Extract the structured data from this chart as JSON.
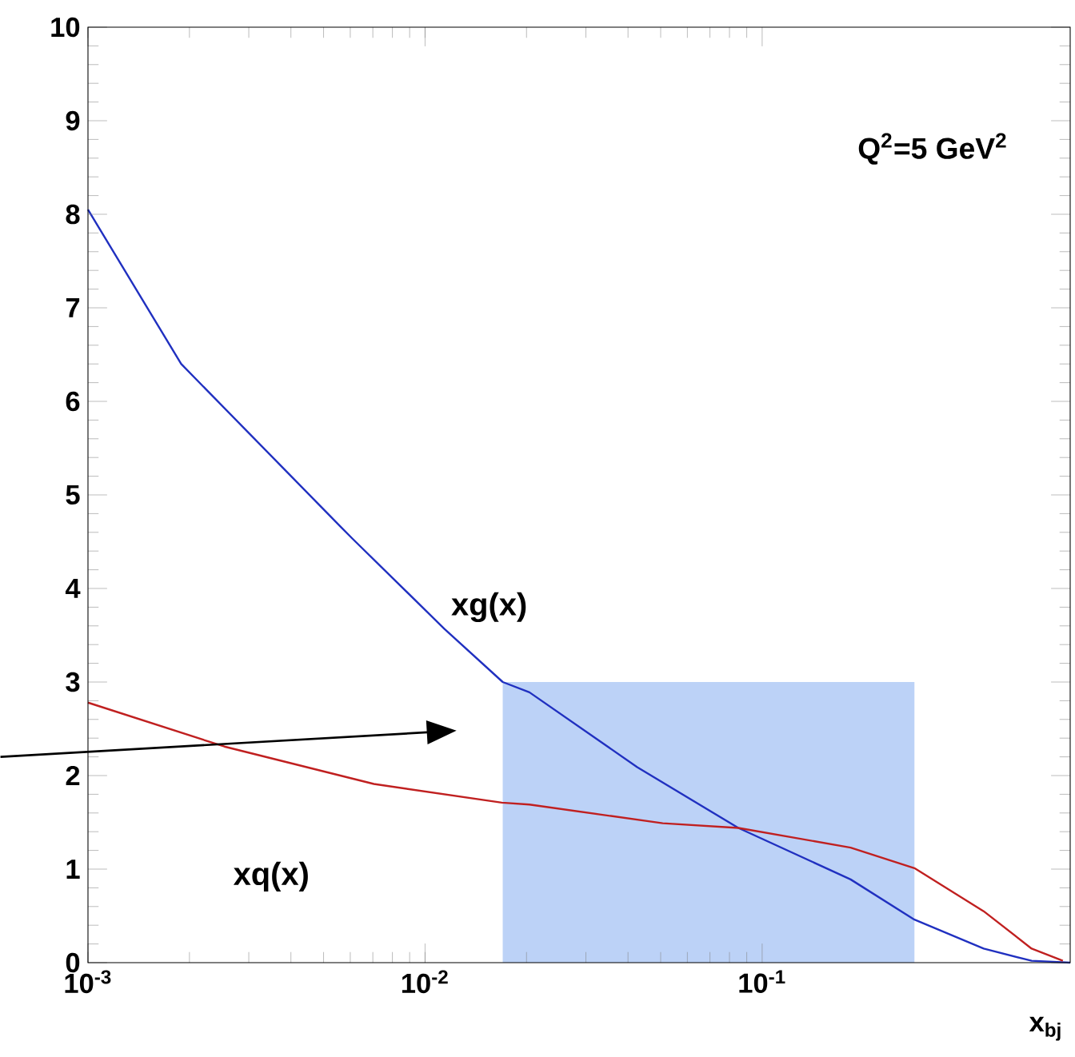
{
  "chart_data": {
    "type": "line",
    "xlabel": "x$_{bj}$",
    "annotations": [
      "Q$^{2}$=5 GeV$^{2}$"
    ],
    "log": "x",
    "xlim": [
      0.001,
      0.82
    ],
    "ylim": [
      0,
      10
    ],
    "xticks": [
      {
        "value": 0.001,
        "label": "10$^{-3}$"
      },
      {
        "value": 0.01,
        "label": "10$^{-2}$"
      },
      {
        "value": 0.1,
        "label": "10$^{-1}$"
      }
    ],
    "yticks": [
      0,
      1,
      2,
      3,
      4,
      5,
      6,
      7,
      8,
      9,
      10
    ],
    "marker": "none",
    "line_style": "solid",
    "series": [
      {
        "type": "area",
        "color": "#bcd2f7",
        "x": [
          0.017,
          0.283
        ],
        "values": [
          3,
          3
        ]
      },
      {
        "name": "xg(x)",
        "color": "#2030c0",
        "x": [
          0.001,
          0.00189,
          0.00565,
          0.0061,
          0.0114,
          0.017,
          0.0204,
          0.0426,
          0.085,
          0.183,
          0.283,
          0.454,
          0.63,
          0.82
        ],
        "values": [
          8.05,
          6.4,
          4.65,
          4.53,
          3.57,
          3.0,
          2.89,
          2.09,
          1.44,
          0.89,
          0.46,
          0.15,
          0.02,
          0
        ]
      },
      {
        "name": "xq(x)",
        "color": "#c02020",
        "x": [
          0.001,
          0.00254,
          0.00705,
          0.0169,
          0.0204,
          0.0507,
          0.085,
          0.183,
          0.283,
          0.454,
          0.63,
          0.78
        ],
        "values": [
          2.78,
          2.31,
          1.91,
          1.71,
          1.69,
          1.49,
          1.44,
          1.23,
          1.01,
          0.55,
          0.15,
          0.02
        ]
      }
    ]
  }
}
